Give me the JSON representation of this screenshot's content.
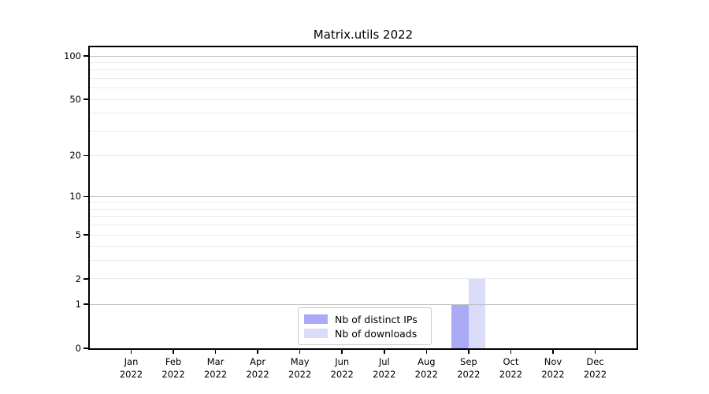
{
  "title": "Matrix.utils 2022",
  "colors": {
    "background": "#ffffff",
    "axis": "#000000",
    "grid_strong": "#c2c2c2",
    "grid_weak": "#ebebeb",
    "bar_distinct_ips": "#abaaf6",
    "bar_downloads": "#dadcfa",
    "legend_border": "#cccccc"
  },
  "chart_data": {
    "type": "bar",
    "title": "Matrix.utils 2022",
    "categories": [
      "Jan",
      "Feb",
      "Mar",
      "Apr",
      "May",
      "Jun",
      "Jul",
      "Aug",
      "Sep",
      "Oct",
      "Nov",
      "Dec"
    ],
    "x_year": "2022",
    "series": [
      {
        "name": "Nb of distinct IPs",
        "color": "#abaaf6",
        "values": [
          0,
          0,
          0,
          0,
          0,
          0,
          0,
          0,
          1,
          0,
          0,
          0
        ]
      },
      {
        "name": "Nb of downloads",
        "color": "#dadcfa",
        "values": [
          0,
          0,
          0,
          0,
          0,
          0,
          0,
          0,
          2,
          0,
          0,
          0
        ]
      }
    ],
    "y_axis": {
      "scale": "log1p",
      "top_value": 115,
      "tick_values": [
        100,
        50,
        20,
        10,
        5,
        2,
        1,
        0
      ],
      "tick_labels": [
        "100",
        "50",
        "20",
        "10",
        "5",
        "2",
        "1",
        "0"
      ],
      "strong_gridline_values": [
        1,
        10,
        100
      ],
      "weak_gridline_values": [
        2,
        3,
        4,
        5,
        6,
        7,
        8,
        9,
        20,
        30,
        40,
        50,
        60,
        70,
        80,
        90
      ]
    },
    "xlabel": "",
    "ylabel": "",
    "grid": true,
    "legend_position": "lower center"
  }
}
